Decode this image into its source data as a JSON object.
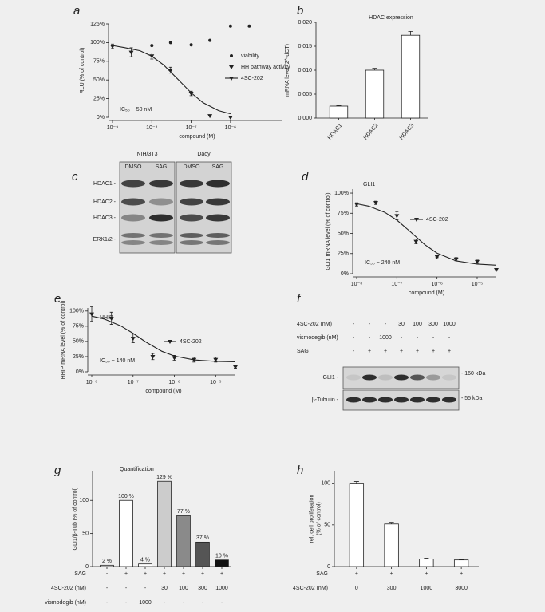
{
  "chart_data": [
    {
      "panel": "a",
      "type": "dose-response",
      "ylabel": "RLU (% of control)",
      "xlabel": "compound (M)",
      "annotation": "IC₅₀ ~ 50 nM",
      "xscale": "log",
      "xlim": [
        1e-09,
        2e-05
      ],
      "xticks": [
        {
          "value": 1e-09,
          "label": "10⁻⁹"
        },
        {
          "value": 1e-08,
          "label": "10⁻⁸"
        },
        {
          "value": 1e-07,
          "label": "10⁻⁷"
        },
        {
          "value": 1e-06,
          "label": "10⁻⁶"
        }
      ],
      "ylim": [
        0,
        125
      ],
      "yticks": [
        {
          "value": 0,
          "label": "0%"
        },
        {
          "value": 25,
          "label": "25%"
        },
        {
          "value": 50,
          "label": "50%"
        },
        {
          "value": 75,
          "label": "75%"
        },
        {
          "value": 100,
          "label": "100%"
        },
        {
          "value": 125,
          "label": "125%"
        }
      ],
      "series": [
        {
          "name": "viability",
          "marker": "circle",
          "color": "#222222",
          "x": [
            1e-08,
            3e-08,
            1e-07,
            3e-07,
            1e-06,
            3e-06
          ],
          "values": [
            96,
            100,
            97,
            103,
            122,
            122
          ]
        },
        {
          "name": "HH pathway activity",
          "marker": "triangle",
          "color": "#222222",
          "x": [
            1e-09,
            3e-09,
            1e-08,
            3e-08,
            1e-07,
            3e-07,
            1e-06
          ],
          "values": [
            95,
            87,
            82,
            63,
            32,
            2,
            0
          ],
          "errors": [
            3,
            6,
            4,
            4,
            3,
            0,
            0
          ]
        }
      ],
      "fit": {
        "name": "4SC-202",
        "marker": "triangle",
        "color": "#222222",
        "x": [
          1e-09,
          2e-09,
          5e-09,
          1e-08,
          2e-08,
          5e-08,
          1e-07,
          2e-07,
          5e-07,
          1e-06
        ],
        "values": [
          96,
          93.3,
          89.1,
          81.7,
          70,
          49,
          32.7,
          19.6,
          8.9,
          4.7
        ]
      }
    },
    {
      "panel": "b",
      "type": "bar",
      "title": "HDAC expression",
      "ylabel": "mRNA level (2^-dCT)",
      "categories": [
        "HDAC1",
        "HDAC2",
        "HDAC3"
      ],
      "values": [
        0.0025,
        0.01,
        0.0173
      ],
      "errors": [
        0.0001,
        0.0004,
        0.0008
      ],
      "color": "#ffffff",
      "ylim": [
        0,
        0.02
      ],
      "yticks": [
        {
          "value": 0,
          "label": "0.000"
        },
        0.005,
        {
          "value": 0.01,
          "label": "0.010"
        },
        0.015,
        {
          "value": 0.02,
          "label": "0.020"
        }
      ]
    },
    {
      "panel": "d",
      "type": "dose-response",
      "title": "GLI1",
      "ylabel": "GLI1 mRNA level (% of control)",
      "xlabel": "compound (M)",
      "annotation": "IC₅₀ ~ 240 nM",
      "xscale": "log",
      "xlim": [
        1e-08,
        3e-05
      ],
      "xticks": [
        {
          "value": 1e-08,
          "label": "10⁻⁸"
        },
        {
          "value": 1e-07,
          "label": "10⁻⁷"
        },
        {
          "value": 1e-06,
          "label": "10⁻⁶"
        },
        {
          "value": 1e-05,
          "label": "10⁻⁵"
        }
      ],
      "ylim": [
        0,
        105
      ],
      "yticks": [
        {
          "value": 0,
          "label": "0%"
        },
        {
          "value": 25,
          "label": "25%"
        },
        {
          "value": 50,
          "label": "50%"
        },
        {
          "value": 75,
          "label": "75%"
        },
        {
          "value": 100,
          "label": "100%"
        }
      ],
      "series": [
        {
          "marker": "triangle",
          "color": "#222222",
          "x": [
            1e-08,
            3e-08,
            1e-07,
            3e-07,
            1e-06,
            3e-06,
            1e-05,
            3e-05
          ],
          "values": [
            86,
            88,
            72,
            40,
            21,
            18,
            15,
            5
          ],
          "errors": [
            2,
            2,
            5,
            3,
            1,
            2,
            2,
            1
          ]
        }
      ],
      "fit": {
        "name": "4SC-202",
        "marker": "triangle",
        "color": "#222222",
        "x": [
          1e-08,
          2e-08,
          5e-08,
          1e-07,
          2e-07,
          5e-07,
          1e-06,
          3e-06,
          1e-05,
          3e-05
        ],
        "values": [
          86.8,
          83.8,
          76.2,
          66.5,
          53.6,
          36,
          25.5,
          15.9,
          11.9,
          10.6
        ]
      }
    },
    {
      "panel": "e",
      "type": "dose-response",
      "title": "HHIP",
      "ylabel": "HHIP mRNA level (% of control)",
      "xlabel": "compound (M)",
      "annotation": "IC₅₀ ~ 140 nM",
      "xscale": "log",
      "xlim": [
        1e-08,
        3e-05
      ],
      "xticks": [
        {
          "value": 1e-08,
          "label": "10⁻⁸"
        },
        {
          "value": 1e-07,
          "label": "10⁻⁷"
        },
        {
          "value": 1e-06,
          "label": "10⁻⁶"
        },
        {
          "value": 1e-05,
          "label": "10⁻⁵"
        }
      ],
      "ylim": [
        0,
        105
      ],
      "yticks": [
        {
          "value": 0,
          "label": "0%"
        },
        {
          "value": 25,
          "label": "25%"
        },
        {
          "value": 50,
          "label": "50%"
        },
        {
          "value": 75,
          "label": "75%"
        },
        {
          "value": 100,
          "label": "100%"
        }
      ],
      "series": [
        {
          "marker": "triangle",
          "color": "#222222",
          "x": [
            1e-08,
            3e-08,
            1e-07,
            3e-07,
            1e-06,
            3e-06,
            1e-05,
            3e-05
          ],
          "values": [
            95,
            88,
            55,
            25,
            23,
            20,
            20,
            8
          ],
          "errors": [
            12,
            10,
            7,
            5,
            4,
            4,
            4,
            2
          ]
        }
      ],
      "fit": {
        "name": "4SC-202",
        "marker": "triangle",
        "color": "#222222",
        "x": [
          1e-08,
          2e-08,
          5e-08,
          1e-07,
          2e-07,
          5e-07,
          1e-06,
          3e-06,
          1e-05,
          3e-05
        ],
        "values": [
          91.6,
          86.9,
          75.7,
          63.3,
          49.4,
          33.7,
          25.9,
          19.6,
          17.1,
          16.4
        ]
      }
    },
    {
      "panel": "g",
      "type": "bar",
      "title": "Quantification",
      "ylabel": "GLI1/β-Tub (% of control)",
      "values": [
        2,
        100,
        4,
        129,
        77,
        37,
        10
      ],
      "value_labels": [
        "2 %",
        "100 %",
        "4 %",
        "129 %",
        "77 %",
        "37 %",
        "10 %"
      ],
      "colors": [
        "#ffffff",
        "#ffffff",
        "#ffffff",
        "#cccccc",
        "#8a8a8a",
        "#555555",
        "#111111"
      ],
      "ylim": [
        0,
        145
      ],
      "yticks": [
        0,
        50,
        100
      ],
      "conditions": [
        {
          "name": "SAG",
          "values": [
            "-",
            "+",
            "+",
            "+",
            "+",
            "+",
            "+"
          ]
        },
        {
          "name": "4SC-202 (nM)",
          "values": [
            "-",
            "-",
            "-",
            "30",
            "100",
            "300",
            "1000"
          ]
        },
        {
          "name": "vismodegib (nM)",
          "values": [
            "-",
            "-",
            "1000",
            "-",
            "-",
            "-",
            "-"
          ]
        }
      ]
    },
    {
      "panel": "h",
      "type": "bar",
      "ylabel": [
        "rel. cell proliferation",
        "(% of control)"
      ],
      "values": [
        100,
        51,
        9,
        8
      ],
      "errors": [
        2,
        2,
        1,
        0.5
      ],
      "color": "#ffffff",
      "ylim": [
        0,
        115
      ],
      "yticks": [
        0,
        50,
        100
      ],
      "conditions": [
        {
          "name": "SAG",
          "values": [
            "+",
            "+",
            "+",
            "+"
          ]
        },
        {
          "name": "4SC-202 (nM)",
          "values": [
            "0",
            "300",
            "1000",
            "3000"
          ]
        }
      ]
    }
  ],
  "blots": [
    {
      "panel": "c",
      "groups": [
        "NIH/3T3",
        "Daoy"
      ],
      "lanes": [
        "DMSO",
        "SAG",
        "DMSO",
        "SAG"
      ],
      "rows": [
        "HDAC1 -",
        "HDAC2 -",
        "HDAC3 -",
        "ERK1/2 -"
      ]
    },
    {
      "panel": "f",
      "conditions": [
        {
          "name": "4SC-202 (nM)",
          "values": [
            "-",
            "-",
            "-",
            "30",
            "100",
            "300",
            "1000"
          ]
        },
        {
          "name": "vismodegib (nM)",
          "values": [
            "-",
            "-",
            "1000",
            "-",
            "-",
            "-",
            "-"
          ]
        },
        {
          "name": "SAG",
          "values": [
            "-",
            "+",
            "+",
            "+",
            "+",
            "+",
            "+"
          ]
        }
      ],
      "rows": [
        "GLI1 -",
        "β-Tubulin -"
      ],
      "markers": [
        "- 160 kDa",
        "- 55 kDa"
      ]
    }
  ]
}
